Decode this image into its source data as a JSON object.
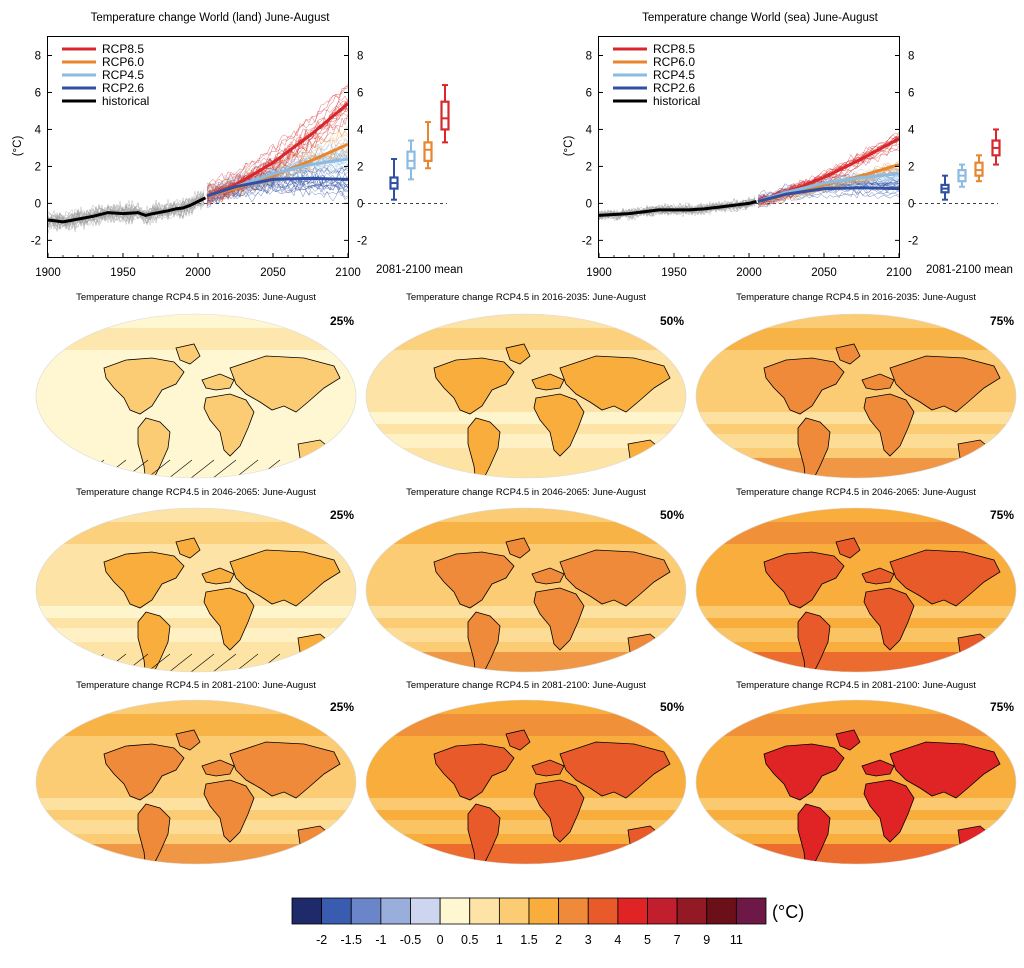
{
  "chart_data": [
    {
      "type": "line",
      "title": "Temperature change World (land) June-August",
      "ylabel": "(°C)",
      "xlim": [
        1900,
        2100
      ],
      "ylim": [
        -2.9,
        9
      ],
      "xticks": [
        "1900",
        "1950",
        "2000",
        "2050",
        "2100"
      ],
      "yticks": [
        "-2",
        "0",
        "2",
        "4",
        "6",
        "8"
      ],
      "right_yticks": [
        "-2",
        "0",
        "2",
        "4",
        "6",
        "8"
      ],
      "legend_position": "top-left",
      "series": [
        {
          "name": "RCP8.5",
          "color": "#d8282b",
          "x": [
            2006,
            2025,
            2050,
            2075,
            2100
          ],
          "values": [
            0.4,
            1.0,
            2.2,
            3.7,
            5.4
          ]
        },
        {
          "name": "RCP6.0",
          "color": "#e8862e",
          "x": [
            2006,
            2025,
            2050,
            2075,
            2100
          ],
          "values": [
            0.4,
            0.8,
            1.5,
            2.3,
            3.2
          ]
        },
        {
          "name": "RCP4.5",
          "color": "#8bbbe2",
          "x": [
            2006,
            2025,
            2050,
            2075,
            2100
          ],
          "values": [
            0.4,
            0.9,
            1.6,
            2.1,
            2.4
          ]
        },
        {
          "name": "RCP2.6",
          "color": "#2f4fa3",
          "x": [
            2006,
            2025,
            2050,
            2075,
            2100
          ],
          "values": [
            0.4,
            0.9,
            1.3,
            1.35,
            1.3
          ]
        },
        {
          "name": "historical",
          "color": "#000000",
          "x": [
            1900,
            1910,
            1920,
            1930,
            1940,
            1950,
            1960,
            1965,
            1970,
            1980,
            1985,
            1990,
            1995,
            2000,
            2005
          ],
          "values": [
            -0.9,
            -1.0,
            -0.85,
            -0.7,
            -0.5,
            -0.55,
            -0.5,
            -0.65,
            -0.55,
            -0.4,
            -0.3,
            -0.25,
            -0.1,
            0.1,
            0.3
          ]
        }
      ],
      "boxplot_label": "2081-2100 mean",
      "boxplots": [
        {
          "series": "RCP2.6",
          "min": 0.2,
          "q1": 0.8,
          "median": 1.1,
          "q3": 1.4,
          "max": 2.4
        },
        {
          "series": "RCP4.5",
          "min": 1.3,
          "q1": 1.9,
          "median": 2.3,
          "q3": 2.8,
          "max": 3.4
        },
        {
          "series": "RCP6.0",
          "min": 1.9,
          "q1": 2.3,
          "median": 2.9,
          "q3": 3.3,
          "max": 4.4
        },
        {
          "series": "RCP8.5",
          "min": 3.3,
          "q1": 4.0,
          "median": 4.6,
          "q3": 5.5,
          "max": 6.4
        }
      ]
    },
    {
      "type": "line",
      "title": "Temperature change World (sea) June-August",
      "ylabel": "(°C)",
      "xlim": [
        1900,
        2100
      ],
      "ylim": [
        -2.9,
        9
      ],
      "xticks": [
        "1900",
        "1950",
        "2000",
        "2050",
        "2100"
      ],
      "yticks": [
        "-2",
        "0",
        "2",
        "4",
        "6",
        "8"
      ],
      "right_yticks": [
        "-2",
        "0",
        "2",
        "4",
        "6",
        "8"
      ],
      "legend_position": "top-left",
      "series": [
        {
          "name": "RCP8.5",
          "color": "#d8282b",
          "x": [
            2006,
            2025,
            2050,
            2075,
            2100
          ],
          "values": [
            0.1,
            0.6,
            1.4,
            2.4,
            3.5
          ]
        },
        {
          "name": "RCP6.0",
          "color": "#e8862e",
          "x": [
            2006,
            2025,
            2050,
            2075,
            2100
          ],
          "values": [
            0.1,
            0.5,
            1.0,
            1.5,
            2.1
          ]
        },
        {
          "name": "RCP4.5",
          "color": "#8bbbe2",
          "x": [
            2006,
            2025,
            2050,
            2075,
            2100
          ],
          "values": [
            0.1,
            0.6,
            1.1,
            1.4,
            1.6
          ]
        },
        {
          "name": "RCP2.6",
          "color": "#2f4fa3",
          "x": [
            2006,
            2025,
            2050,
            2075,
            2100
          ],
          "values": [
            0.1,
            0.5,
            0.8,
            0.85,
            0.8
          ]
        },
        {
          "name": "historical",
          "color": "#000000",
          "x": [
            1900,
            1910,
            1920,
            1930,
            1940,
            1950,
            1960,
            1970,
            1980,
            1990,
            2000,
            2005
          ],
          "values": [
            -0.65,
            -0.6,
            -0.55,
            -0.45,
            -0.35,
            -0.35,
            -0.35,
            -0.3,
            -0.2,
            -0.1,
            0.0,
            0.1
          ]
        }
      ],
      "boxplot_label": "2081-2100 mean",
      "boxplots": [
        {
          "series": "RCP2.6",
          "min": 0.2,
          "q1": 0.6,
          "median": 0.8,
          "q3": 1.0,
          "max": 1.5
        },
        {
          "series": "RCP4.5",
          "min": 0.9,
          "q1": 1.2,
          "median": 1.5,
          "q3": 1.8,
          "max": 2.1
        },
        {
          "series": "RCP6.0",
          "min": 1.2,
          "q1": 1.5,
          "median": 1.8,
          "q3": 2.2,
          "max": 2.6
        },
        {
          "series": "RCP8.5",
          "min": 2.1,
          "q1": 2.6,
          "median": 3.0,
          "q3": 3.4,
          "max": 4.0
        }
      ]
    },
    {
      "type": "heatmap",
      "maps": [
        {
          "title": "Temperature change RCP4.5 in 2016-2035: June-August",
          "percentile": "25%",
          "level": 0
        },
        {
          "title": "Temperature change RCP4.5 in 2016-2035: June-August",
          "percentile": "50%",
          "level": 1
        },
        {
          "title": "Temperature change RCP4.5 in 2016-2035: June-August",
          "percentile": "75%",
          "level": 2
        },
        {
          "title": "Temperature change RCP4.5 in 2046-2065: June-August",
          "percentile": "25%",
          "level": 1
        },
        {
          "title": "Temperature change RCP4.5 in 2046-2065: June-August",
          "percentile": "50%",
          "level": 2
        },
        {
          "title": "Temperature change RCP4.5 in 2046-2065: June-August",
          "percentile": "75%",
          "level": 3
        },
        {
          "title": "Temperature change RCP4.5 in 2081-2100: June-August",
          "percentile": "25%",
          "level": 2
        },
        {
          "title": "Temperature change RCP4.5 in 2081-2100: June-August",
          "percentile": "50%",
          "level": 3
        },
        {
          "title": "Temperature change RCP4.5 in 2081-2100: June-August",
          "percentile": "75%",
          "level": 4
        }
      ],
      "colorbar": {
        "unit": "(°C)",
        "labels": [
          "-2",
          "-1.5",
          "-1",
          "-0.5",
          "0",
          "0.5",
          "1",
          "1.5",
          "2",
          "3",
          "4",
          "5",
          "7",
          "9",
          "11"
        ],
        "colors": [
          "#1f2a6b",
          "#3a5cb0",
          "#6a86c8",
          "#9aaedb",
          "#cdd6ee",
          "#fff6d2",
          "#fde3a5",
          "#fbcc74",
          "#f8ad3c",
          "#ee8a39",
          "#e85a2a",
          "#e02325",
          "#c21f2e",
          "#931a25",
          "#6b0f19",
          "#6e1848"
        ]
      }
    }
  ]
}
